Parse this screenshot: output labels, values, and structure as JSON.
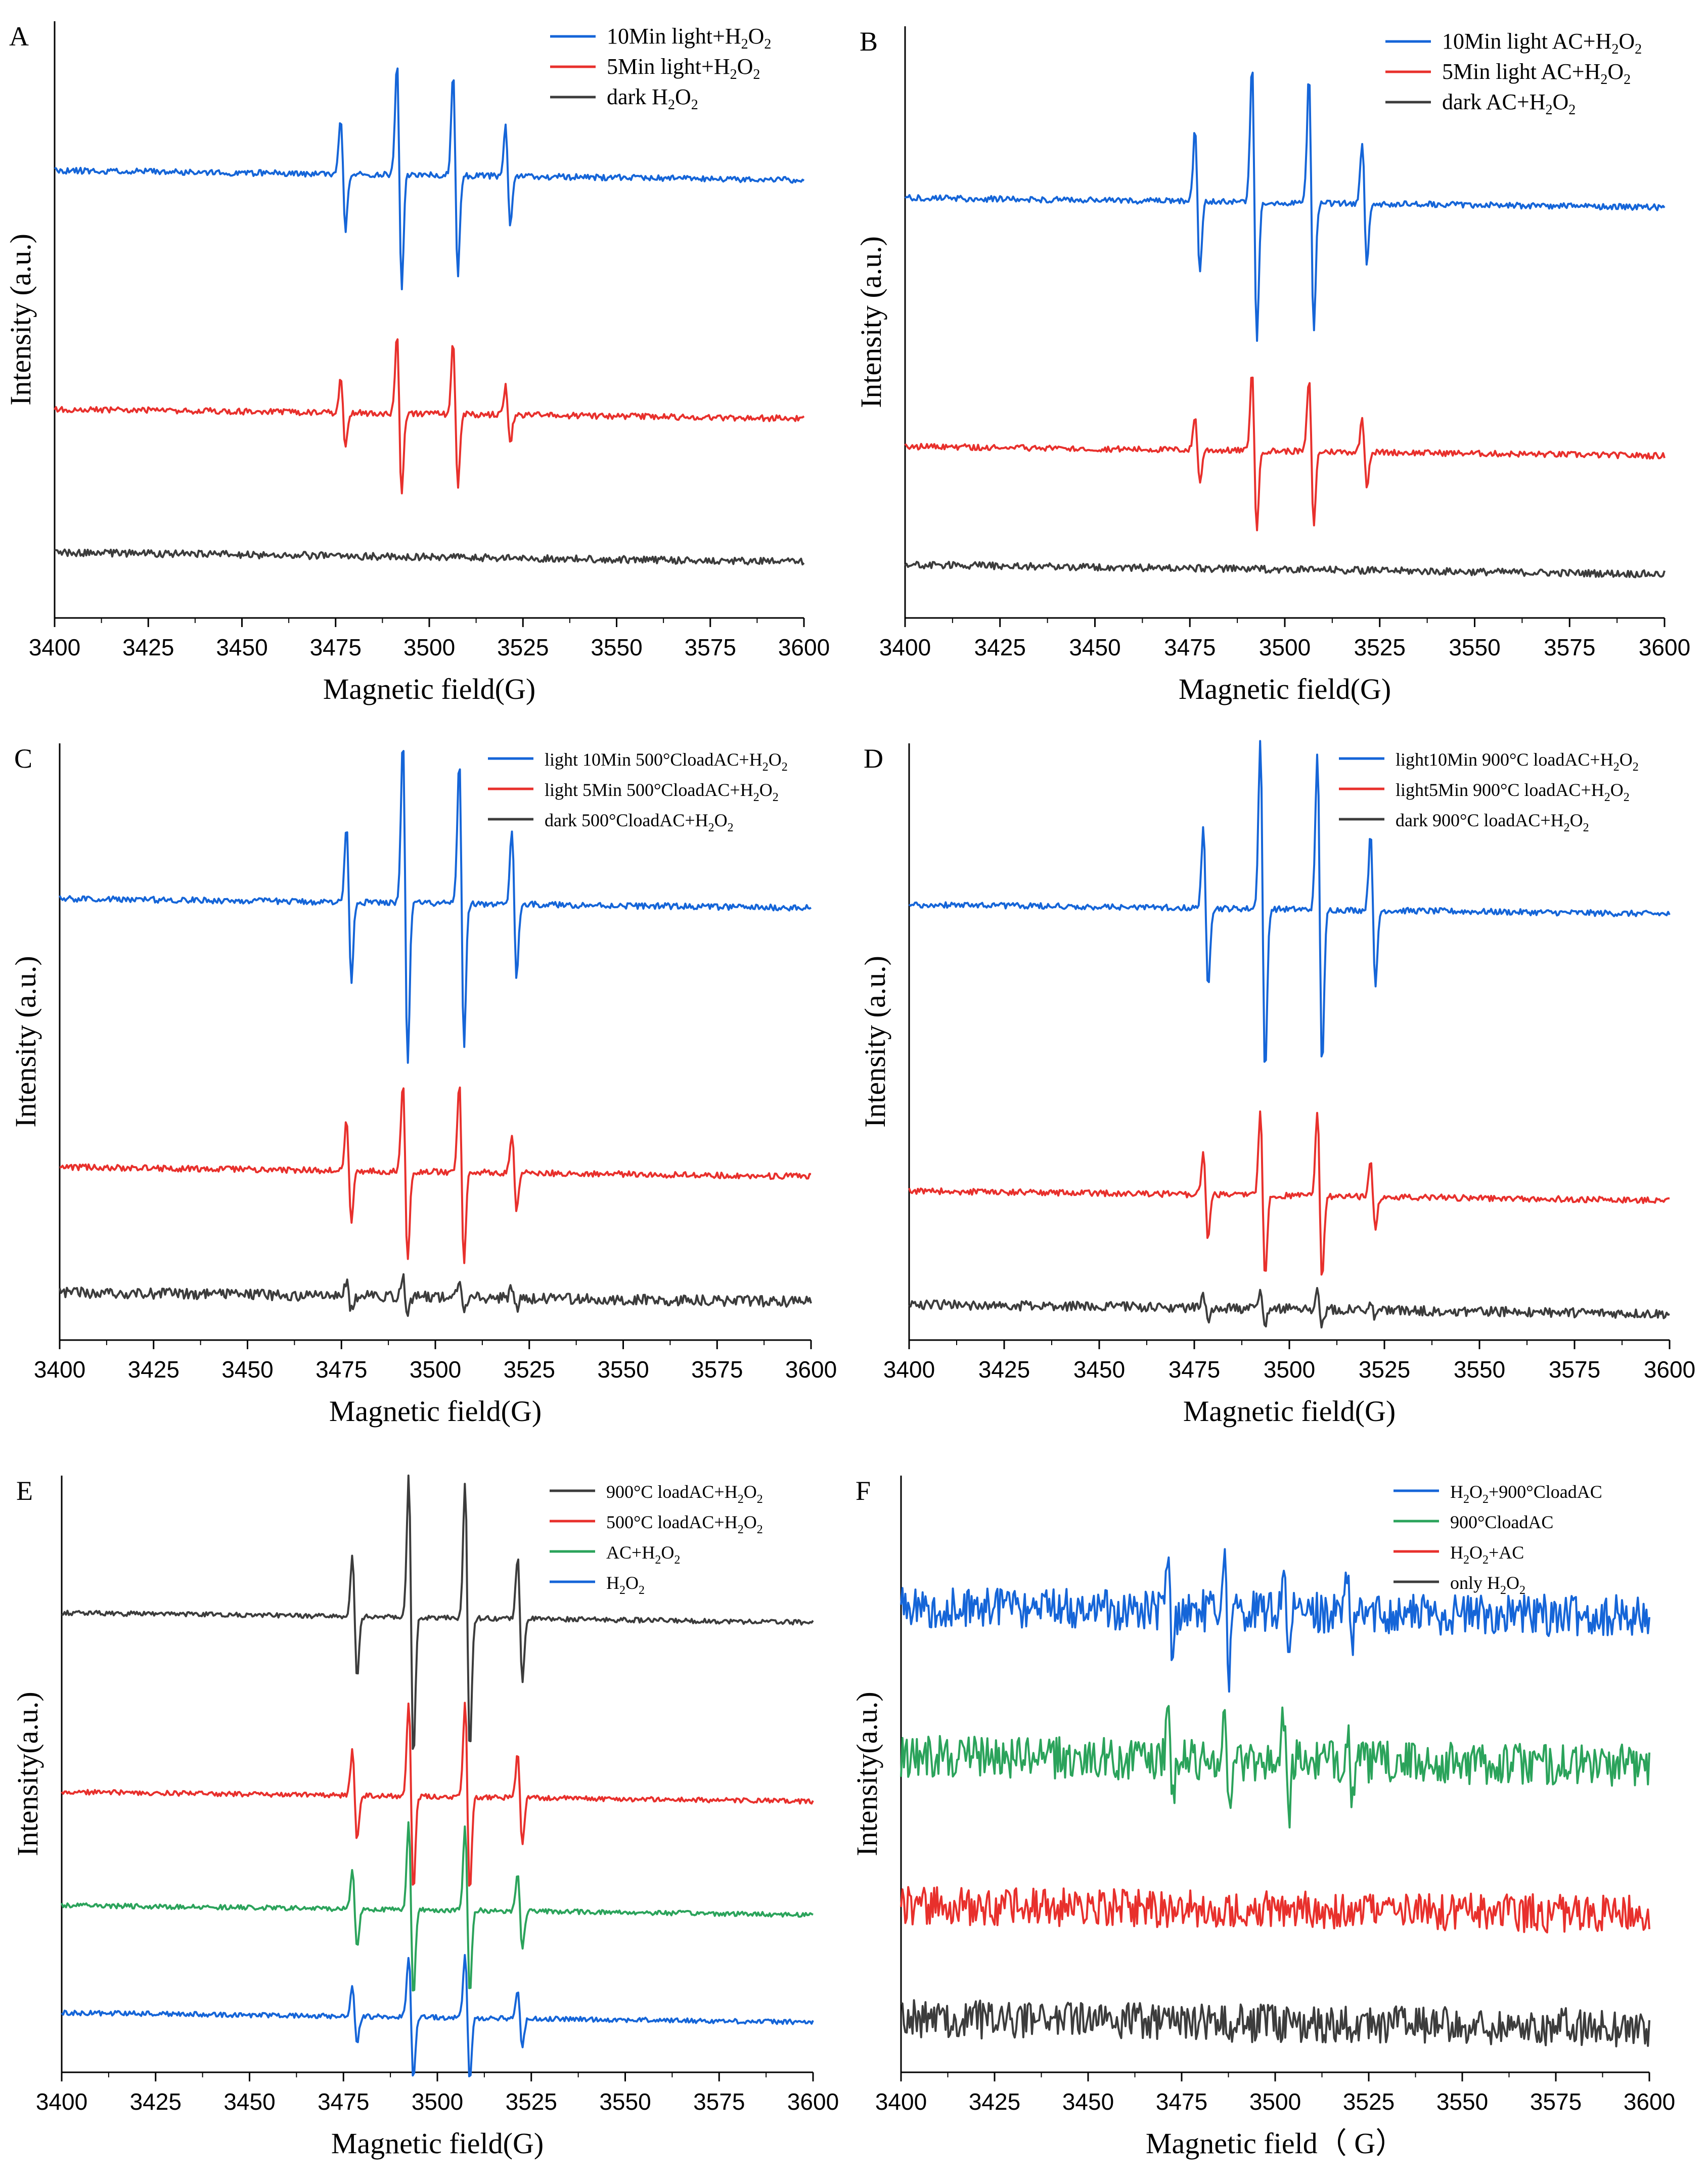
{
  "figure": {
    "colors": {
      "blue": "#1565d8",
      "red": "#e8302c",
      "black": "#3c3c3c",
      "green": "#2ba35b",
      "axis": "#000000"
    }
  },
  "chart_data": [
    {
      "id": "A",
      "type": "line",
      "panel_label": "A",
      "xlabel": "Magnetic field(G)",
      "ylabel": "Intensity (a.u.)",
      "xlim": [
        3400,
        3600
      ],
      "xticks": [
        "3400",
        "3425",
        "3450",
        "3475",
        "3500",
        "3525",
        "3550",
        "3575",
        "3600"
      ],
      "ylim": [
        0,
        10
      ],
      "legend_position": "top-right",
      "peak_positions": [
        3477,
        3492,
        3507,
        3521
      ],
      "series": [
        {
          "name": "10Min light+H2O2",
          "legend": [
            "10Min light+H",
            "2",
            "O",
            "2",
            ""
          ],
          "color": "blue",
          "baseline": 7.5,
          "peak_amplitude": [
            1.0,
            2.0,
            1.8,
            0.9
          ],
          "noise": 0.05,
          "seed": 11
        },
        {
          "name": "5Min light+H2O2",
          "legend": [
            "5Min light+H",
            "2",
            "O",
            "2",
            ""
          ],
          "color": "red",
          "baseline": 3.5,
          "peak_amplitude": [
            0.6,
            1.4,
            1.3,
            0.5
          ],
          "noise": 0.05,
          "seed": 12
        },
        {
          "name": "dark H2O2",
          "legend": [
            "dark H",
            "2",
            "O",
            "2",
            ""
          ],
          "color": "black",
          "baseline": 1.1,
          "peak_amplitude": [
            0,
            0,
            0,
            0
          ],
          "noise": 0.06,
          "seed": 13
        }
      ]
    },
    {
      "id": "B",
      "type": "line",
      "panel_label": "B",
      "xlabel": "Magnetic field(G)",
      "ylabel": "Intensity (a.u.)",
      "xlim": [
        3400,
        3600
      ],
      "xticks": [
        "3400",
        "3425",
        "3450",
        "3475",
        "3500",
        "3525",
        "3550",
        "3575",
        "3600"
      ],
      "ylim": [
        0,
        10
      ],
      "legend_position": "top-right",
      "peak_positions": [
        3477,
        3492,
        3507,
        3521
      ],
      "series": [
        {
          "name": "10Min light AC+H2O2",
          "legend": [
            "10Min light AC+H",
            "2",
            "O",
            "2",
            ""
          ],
          "color": "blue",
          "baseline": 7.1,
          "peak_amplitude": [
            1.3,
            2.5,
            2.3,
            1.1
          ],
          "noise": 0.05,
          "seed": 21
        },
        {
          "name": "5Min light AC+H2O2",
          "legend": [
            "5Min light AC+H",
            "2",
            "O",
            "2",
            ""
          ],
          "color": "red",
          "baseline": 2.9,
          "peak_amplitude": [
            0.6,
            1.4,
            1.3,
            0.6
          ],
          "noise": 0.05,
          "seed": 22
        },
        {
          "name": "dark AC+H2O2",
          "legend": [
            "dark AC+H",
            "2",
            "O",
            "2",
            ""
          ],
          "color": "black",
          "baseline": 0.9,
          "peak_amplitude": [
            0,
            0,
            0,
            0
          ],
          "noise": 0.06,
          "seed": 23
        }
      ]
    },
    {
      "id": "C",
      "type": "line",
      "panel_label": "C",
      "xlabel": "Magnetic field(G)",
      "ylabel": "Intensity",
      "ylabel_suffix": "(a.u.)",
      "xlim": [
        3400,
        3600
      ],
      "xticks": [
        "3400",
        "3425",
        "3450",
        "3475",
        "3500",
        "3525",
        "3550",
        "3575",
        "3600"
      ],
      "ylim": [
        0,
        10
      ],
      "legend_position": "top-right",
      "legend_font": "small",
      "peak_positions": [
        3477,
        3492,
        3507,
        3521
      ],
      "series": [
        {
          "name": "light 10Min 500°CloadAC+H2O2",
          "legend": [
            "light 10Min 500°CloadAC+H",
            "2",
            "O",
            "2",
            ""
          ],
          "color": "blue",
          "baseline": 7.4,
          "peak_amplitude": [
            1.4,
            2.9,
            2.6,
            1.3
          ],
          "noise": 0.05,
          "seed": 31
        },
        {
          "name": "light 5Min 500°CloadAC+H2O2",
          "legend": [
            "light 5Min 500°CloadAC+H",
            "2",
            "O",
            "2",
            ""
          ],
          "color": "red",
          "baseline": 2.9,
          "peak_amplitude": [
            0.9,
            1.6,
            1.6,
            0.7
          ],
          "noise": 0.05,
          "seed": 32
        },
        {
          "name": "dark 500°CloadAC+H2O2",
          "legend": [
            "dark 500°CloadAC+H",
            "2",
            "O",
            "2",
            ""
          ],
          "color": "black",
          "baseline": 0.8,
          "peak_amplitude": [
            0.25,
            0.35,
            0.3,
            0.2
          ],
          "noise": 0.09,
          "seed": 33
        }
      ]
    },
    {
      "id": "D",
      "type": "line",
      "panel_label": "D",
      "xlabel": "Magnetic field(G)",
      "ylabel": "Intensity (a.u.)",
      "xlim": [
        3400,
        3600
      ],
      "xticks": [
        "3400",
        "3425",
        "3450",
        "3475",
        "3500",
        "3525",
        "3550",
        "3575",
        "3600"
      ],
      "ylim": [
        0,
        10
      ],
      "legend_position": "top-right",
      "legend_font": "small",
      "peak_positions": [
        3478,
        3493,
        3508,
        3522
      ],
      "series": [
        {
          "name": "light10Min 900°C loadAC+H2O2",
          "legend": [
            "light10Min 900°C loadAC+H",
            "2",
            "O",
            "2",
            ""
          ],
          "color": "blue",
          "baseline": 7.3,
          "peak_amplitude": [
            1.4,
            3.0,
            2.8,
            1.4
          ],
          "noise": 0.05,
          "seed": 41
        },
        {
          "name": "light5Min 900°C loadAC+H2O2",
          "legend": [
            "light5Min 900°C loadAC+H",
            "2",
            "O",
            "2",
            ""
          ],
          "color": "red",
          "baseline": 2.5,
          "peak_amplitude": [
            0.8,
            1.5,
            1.5,
            0.6
          ],
          "noise": 0.05,
          "seed": 42
        },
        {
          "name": "dark 900°C loadAC+H2O2",
          "legend": [
            "dark 900°C loadAC+H",
            "2",
            "O",
            "2",
            ""
          ],
          "color": "black",
          "baseline": 0.6,
          "peak_amplitude": [
            0.2,
            0.3,
            0.3,
            0.15
          ],
          "noise": 0.08,
          "seed": 43
        }
      ]
    },
    {
      "id": "E",
      "type": "line",
      "panel_label": "E",
      "xlabel": "Magnetic field(G)",
      "ylabel": "Intensity(a.u.)",
      "xlim": [
        3400,
        3600
      ],
      "xticks": [
        "3400",
        "3425",
        "3450",
        "3475",
        "3500",
        "3525",
        "3550",
        "3575",
        "3600"
      ],
      "ylim": [
        0,
        10
      ],
      "legend_position": "top-right",
      "legend_font": "small",
      "peak_positions": [
        3478,
        3493,
        3508,
        3522
      ],
      "series": [
        {
          "name": "900°C loadAC+H2O2",
          "legend": [
            "900°C loadAC+H",
            "2",
            "O",
            "2",
            ""
          ],
          "color": "black",
          "baseline": 7.7,
          "peak_amplitude": [
            1.1,
            2.5,
            2.4,
            1.1
          ],
          "noise": 0.04,
          "seed": 51
        },
        {
          "name": "500°C loadAC+H2O2",
          "legend": [
            "500°C loadAC+H",
            "2",
            "O",
            "2",
            ""
          ],
          "color": "red",
          "baseline": 4.7,
          "peak_amplitude": [
            0.8,
            1.7,
            1.7,
            0.8
          ],
          "noise": 0.04,
          "seed": 52
        },
        {
          "name": "AC+H2O2",
          "legend": [
            "AC+H",
            "2",
            "O",
            "2",
            ""
          ],
          "color": "green",
          "baseline": 2.8,
          "peak_amplitude": [
            0.7,
            1.6,
            1.5,
            0.7
          ],
          "noise": 0.04,
          "seed": 53
        },
        {
          "name": "H2O2",
          "legend": [
            "H",
            "2",
            "O",
            "2",
            ""
          ],
          "color": "blue",
          "baseline": 1.0,
          "peak_amplitude": [
            0.5,
            1.1,
            1.1,
            0.5
          ],
          "noise": 0.04,
          "seed": 54
        }
      ]
    },
    {
      "id": "F",
      "type": "line",
      "panel_label": "F",
      "xlabel": "Magnetic field（ G）",
      "ylabel": "Intensity(a.u.)",
      "xlim": [
        3400,
        3600
      ],
      "xticks": [
        "3400",
        "3425",
        "3450",
        "3475",
        "3500",
        "3525",
        "3550",
        "3575",
        "3600"
      ],
      "ylim": [
        0,
        10
      ],
      "legend_position": "top-right",
      "legend_font": "small",
      "peak_positions": [
        3472,
        3487,
        3503,
        3520
      ],
      "series": [
        {
          "name": "H2O2+900°CloadAC",
          "legend": [
            "H",
            "2",
            "O",
            "2",
            "+900°CloadAC"
          ],
          "color": "blue",
          "baseline": 7.8,
          "peak_amplitude": [
            0.9,
            1.1,
            0.9,
            0.6
          ],
          "noise": 0.35,
          "seed": 61
        },
        {
          "name": "900°CloadAC",
          "legend": [
            "900°CloadAC",
            "",
            "",
            "",
            ""
          ],
          "color": "green",
          "baseline": 5.3,
          "peak_amplitude": [
            0.7,
            1.0,
            0.9,
            0.6
          ],
          "noise": 0.35,
          "seed": 62
        },
        {
          "name": "H2O2+AC",
          "legend": [
            "H",
            "2",
            "O",
            "2",
            "+AC"
          ],
          "color": "red",
          "baseline": 2.8,
          "peak_amplitude": [
            0,
            0,
            0,
            0
          ],
          "noise": 0.32,
          "seed": 63
        },
        {
          "name": "only H2O2",
          "legend": [
            "only H",
            "2",
            "O",
            "2",
            ""
          ],
          "color": "black",
          "baseline": 0.9,
          "peak_amplitude": [
            0,
            0,
            0,
            0
          ],
          "noise": 0.32,
          "seed": 64
        }
      ]
    }
  ]
}
